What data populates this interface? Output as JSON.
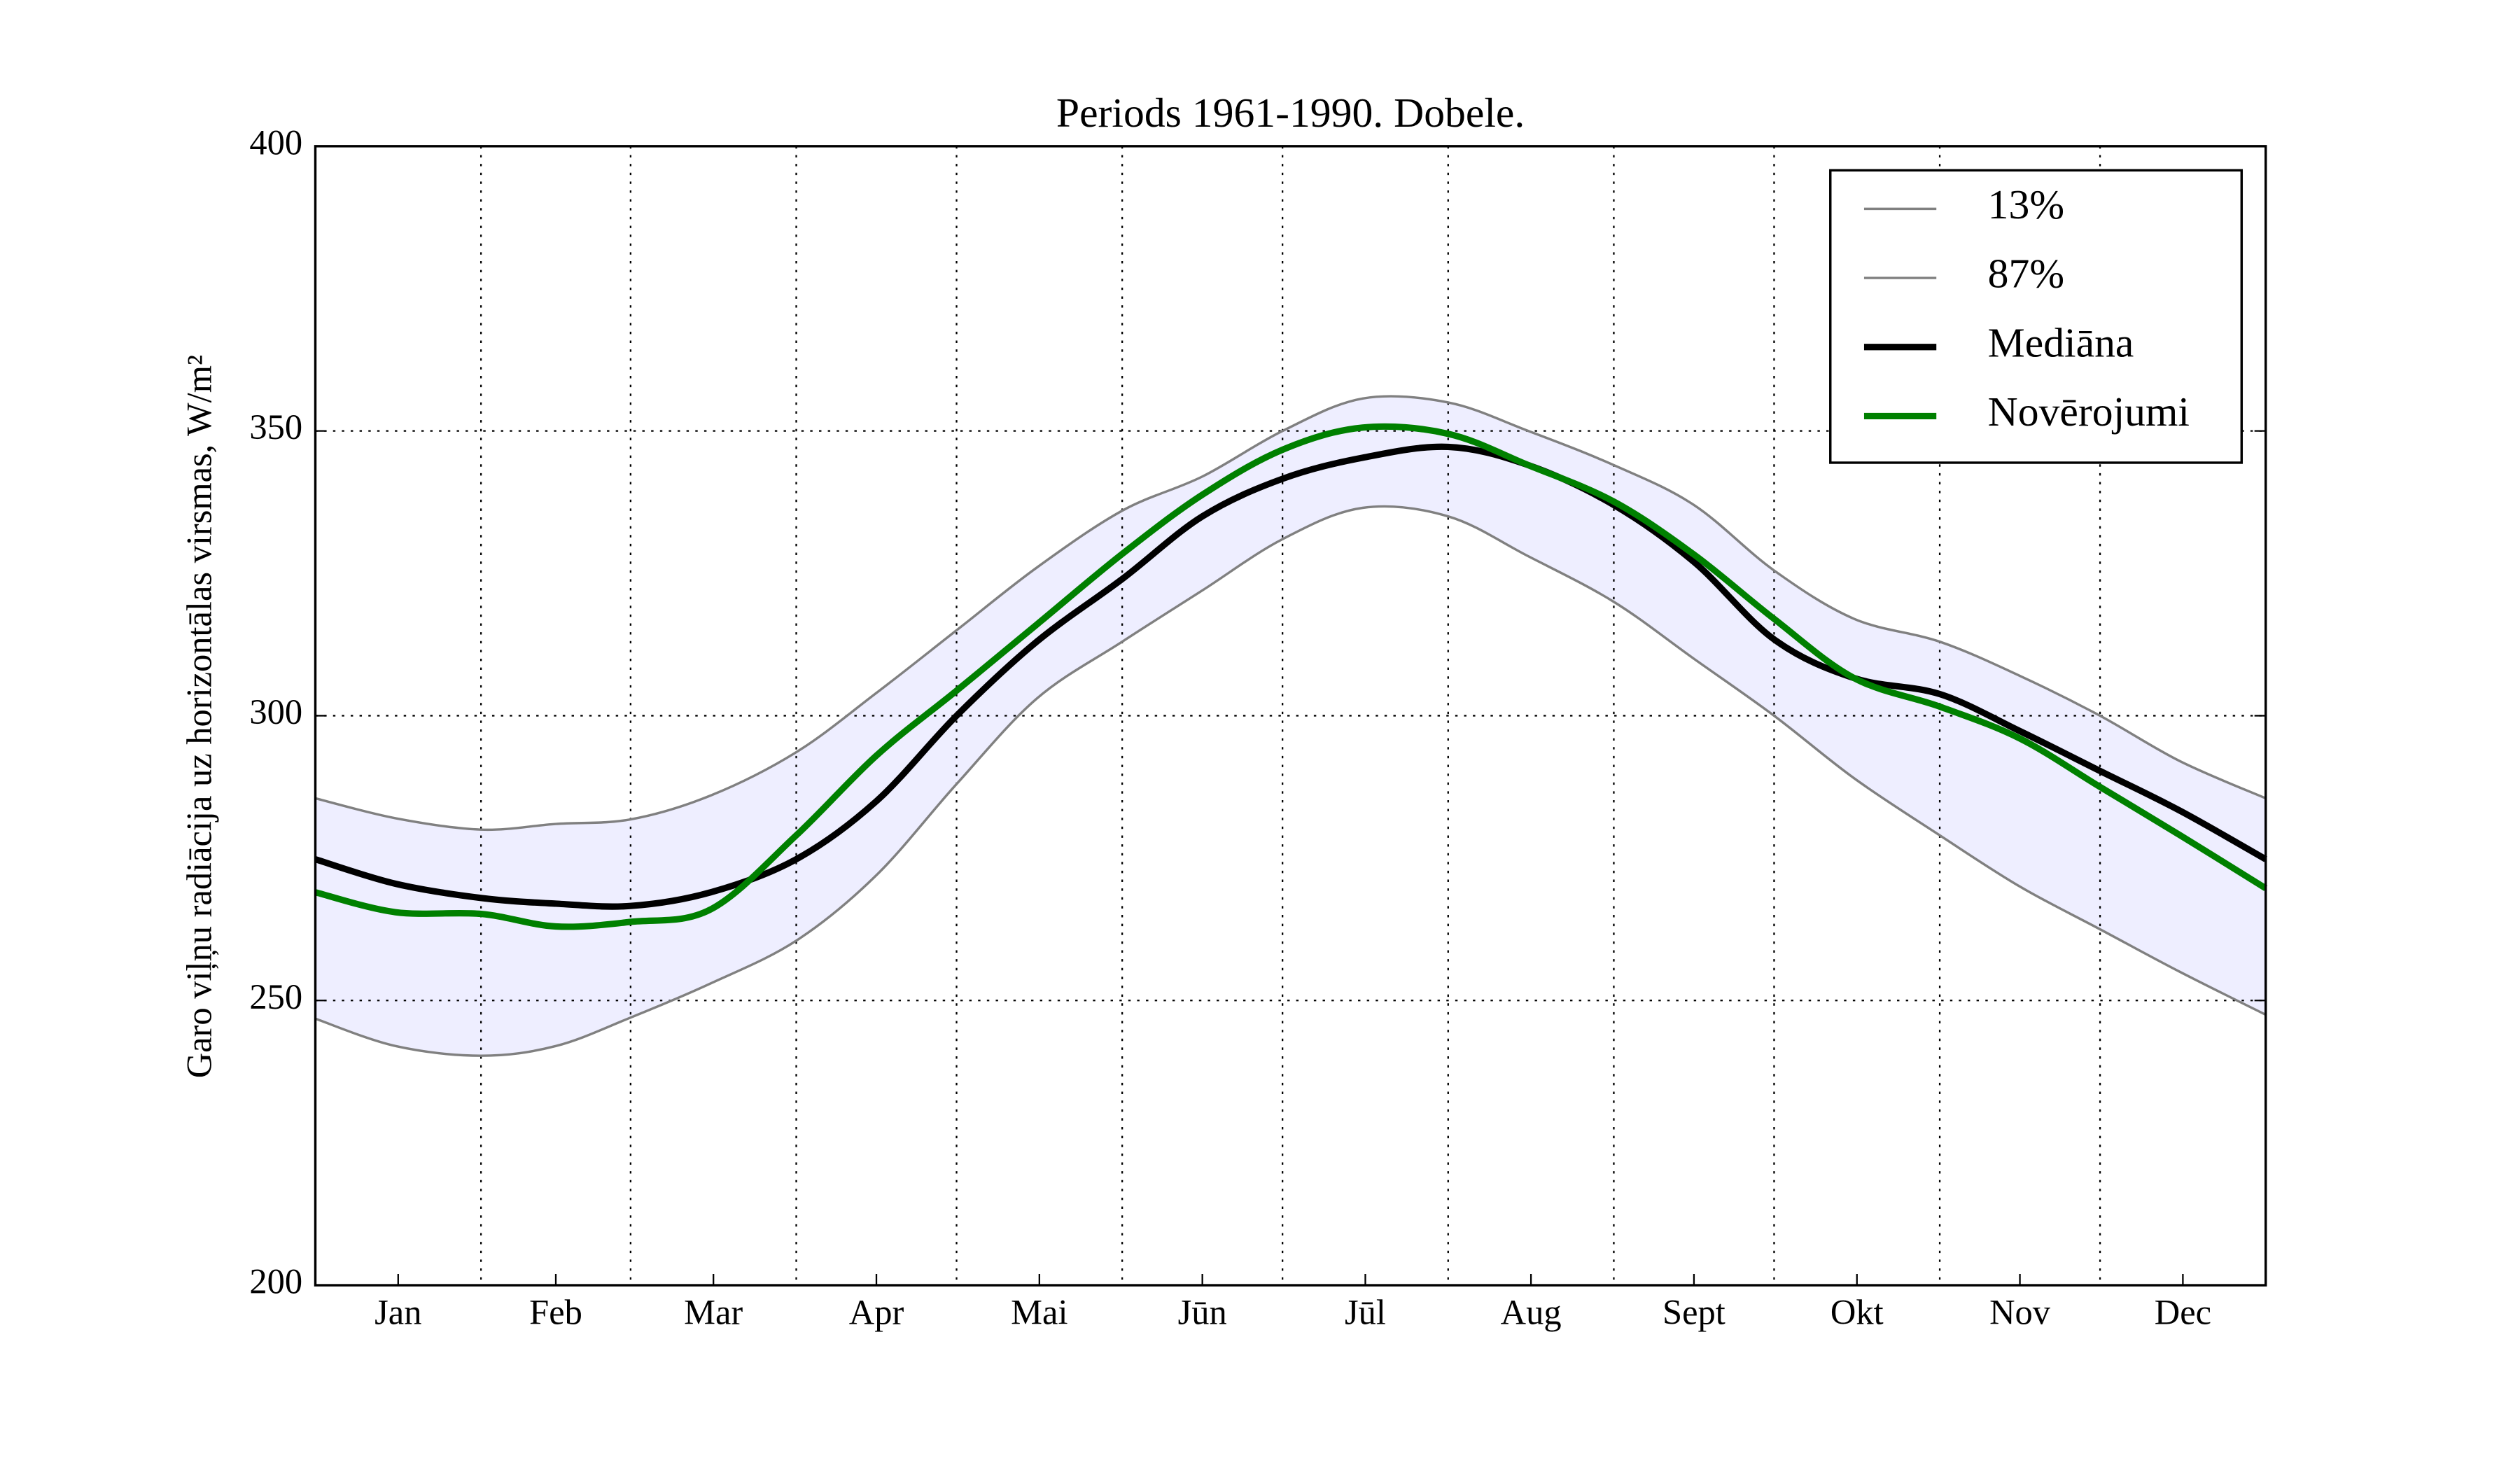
{
  "chart_data": {
    "type": "line",
    "title": "Periods 1961-1990. Dobele.",
    "ylabel": "Garo viļņu radiācija uz horizontālas virsmas, W/m²",
    "x": [
      0,
      15,
      31,
      45,
      59,
      74,
      90,
      105,
      120,
      135,
      151,
      166,
      181,
      196,
      212,
      227,
      243,
      258,
      273,
      288,
      304,
      319,
      334,
      349,
      365
    ],
    "xlim": [
      0,
      365
    ],
    "xticks": [
      {
        "value": 15.5,
        "label": "Jan"
      },
      {
        "value": 45,
        "label": "Feb"
      },
      {
        "value": 74.5,
        "label": "Mar"
      },
      {
        "value": 105,
        "label": "Apr"
      },
      {
        "value": 135.5,
        "label": "Mai"
      },
      {
        "value": 166,
        "label": "Jūn"
      },
      {
        "value": 196.5,
        "label": "Jūl"
      },
      {
        "value": 227.5,
        "label": "Aug"
      },
      {
        "value": 258,
        "label": "Sept"
      },
      {
        "value": 288.5,
        "label": "Okt"
      },
      {
        "value": 319,
        "label": "Nov"
      },
      {
        "value": 349.5,
        "label": "Dec"
      }
    ],
    "xgrid": [
      31,
      59,
      90,
      120,
      151,
      181,
      212,
      243,
      273,
      304,
      334
    ],
    "ylim": [
      200,
      400
    ],
    "yticks": [
      200,
      250,
      300,
      350,
      400
    ],
    "grid": true,
    "legend": "upper right",
    "band_color": "#eeeeff",
    "series": [
      {
        "name": "13%",
        "color": "#808080",
        "width": 1.5,
        "values": [
          246.8,
          242,
          240.3,
          242,
          247,
          253,
          260.5,
          272,
          288,
          303,
          313,
          322,
          331,
          336.5,
          335,
          328,
          320,
          310,
          300,
          289,
          279,
          270,
          262.5,
          255,
          247.5
        ]
      },
      {
        "name": "87%",
        "color": "#808080",
        "width": 1.5,
        "values": [
          285.5,
          282,
          280,
          281,
          281.8,
          286,
          293.6,
          304,
          315,
          326,
          336,
          342,
          350,
          355.7,
          355,
          350,
          344,
          337,
          325.5,
          317,
          313,
          307,
          300,
          292,
          285.5
        ]
      },
      {
        "name": "Mediāna",
        "color": "#000000",
        "width": 4,
        "values": [
          274.8,
          270.5,
          268,
          267,
          266.6,
          269,
          274.8,
          285,
          300,
          313,
          324,
          335,
          341.6,
          345.3,
          347.2,
          344,
          337,
          327,
          313.4,
          306.6,
          303.8,
          297.3,
          290.3,
          283.3,
          274.8
        ]
      },
      {
        "name": "Novērojumi",
        "color": "#008000",
        "width": 4,
        "values": [
          269,
          265.5,
          265.2,
          263,
          263.8,
          266,
          279,
          293,
          304.4,
          316,
          328.4,
          338.8,
          346.7,
          350.6,
          349.5,
          344,
          337.6,
          328.3,
          317,
          306.6,
          301.6,
          296,
          287.5,
          279,
          269.7
        ]
      }
    ]
  }
}
